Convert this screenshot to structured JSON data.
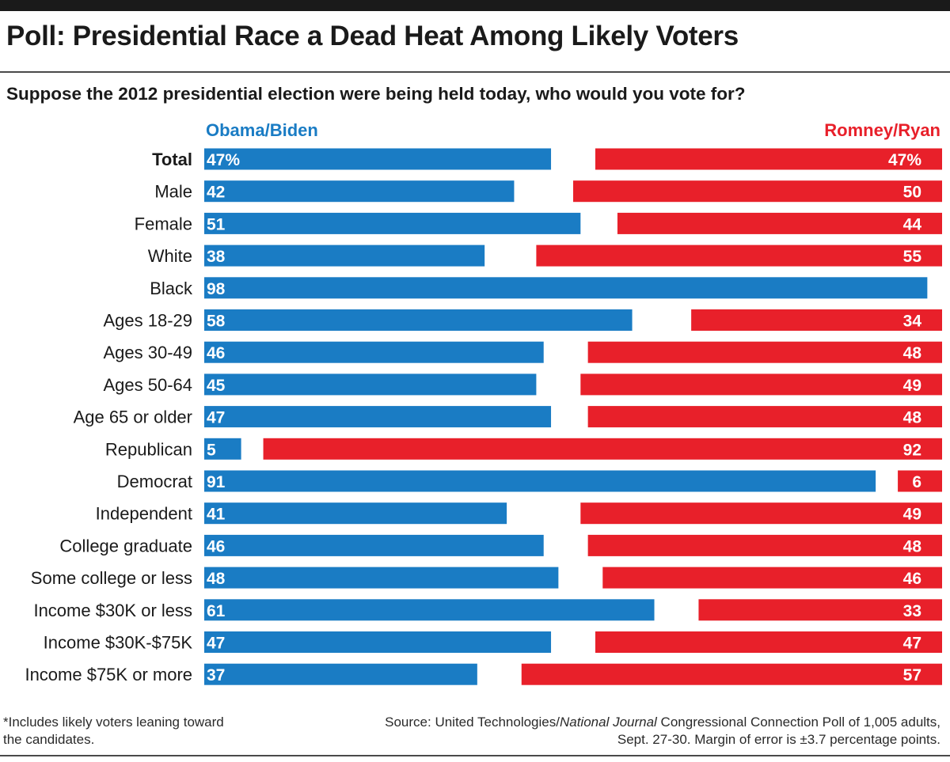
{
  "title": "Poll: Presidential Race a Dead Heat Among Likely Voters",
  "subtitle": "Suppose the 2012 presidential election were being held today, who would you vote for?",
  "footnote": "*Includes likely voters leaning toward the candidates.",
  "source": {
    "prefix": "Source: United Technologies/",
    "publication": "National Journal",
    "suffix": " Congressional Connection Poll of 1,005 adults, Sept. 27-30. Margin of error is ±3.7 percentage points."
  },
  "colors": {
    "obama": "#1a7cc4",
    "romney": "#e8202a"
  },
  "chart_data": {
    "type": "bar",
    "xlim": [
      0,
      100
    ],
    "legend_placement": "top",
    "categories": [
      "Total",
      "Male",
      "Female",
      "White",
      "Black",
      "Ages 18-29",
      "Ages 30-49",
      "Ages 50-64",
      "Age 65 or older",
      "Republican",
      "Democrat",
      "Independent",
      "College graduate",
      "Some college or less",
      "Income $30K or less",
      "Income $30K-$75K",
      "Income $75K or more"
    ],
    "series": [
      {
        "name": "Obama/Biden",
        "values": [
          47,
          42,
          51,
          38,
          98,
          58,
          46,
          45,
          47,
          5,
          91,
          41,
          46,
          48,
          61,
          47,
          37
        ],
        "labels": [
          "47%",
          "42",
          "51",
          "38",
          "98",
          "58",
          "46",
          "45",
          "47",
          "5",
          "91",
          "41",
          "46",
          "48",
          "61",
          "47",
          "37"
        ]
      },
      {
        "name": "Romney/Ryan",
        "values": [
          47,
          50,
          44,
          55,
          null,
          34,
          48,
          49,
          48,
          92,
          6,
          49,
          48,
          46,
          33,
          47,
          57
        ],
        "labels": [
          "47%",
          "50",
          "44",
          "55",
          "",
          "34",
          "48",
          "49",
          "48",
          "92",
          "6",
          "49",
          "48",
          "46",
          "33",
          "47",
          "57"
        ]
      }
    ]
  }
}
